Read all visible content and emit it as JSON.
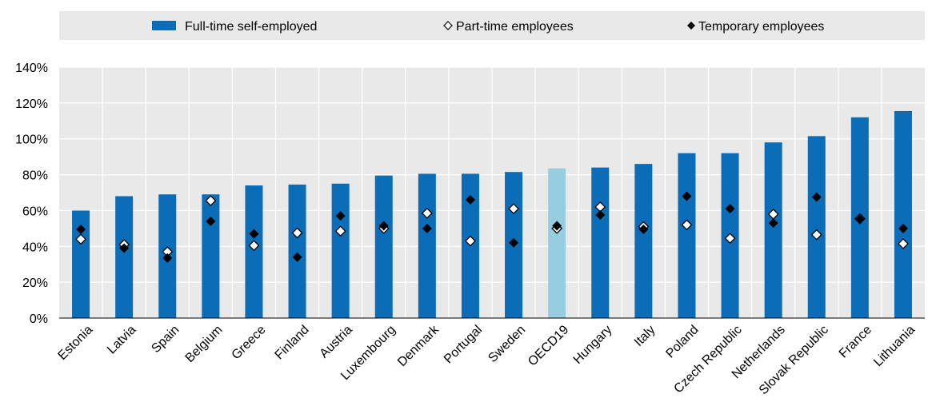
{
  "chart_data": {
    "type": "bar",
    "categories": [
      "Estonia",
      "Latvia",
      "Spain",
      "Belgium",
      "Greece",
      "Finland",
      "Austria",
      "Luxembourg",
      "Denmark",
      "Portugal",
      "Sweden",
      "OECD19",
      "Hungary",
      "Italy",
      "Poland",
      "Czech Republic",
      "Netherlands",
      "Slovak Republic",
      "France",
      "Lithuania"
    ],
    "highlight_category": "OECD19",
    "series": [
      {
        "name": "Full-time self-employed",
        "marker": "bar",
        "color": "#0b6db8",
        "values": [
          60,
          68,
          69,
          69,
          74,
          74.5,
          75,
          79.5,
          80.5,
          80.5,
          81.5,
          83.5,
          84,
          86,
          92,
          92,
          98,
          101.5,
          112,
          115.5
        ]
      },
      {
        "name": "Part-time employees",
        "marker": "hollow-diamond",
        "values": [
          44,
          41,
          37,
          65.5,
          40.5,
          47.5,
          48.5,
          50,
          58.5,
          43,
          61,
          50,
          62,
          51,
          52,
          44.5,
          58,
          46.5,
          55.5,
          41.5
        ]
      },
      {
        "name": "Temporary employees",
        "marker": "filled-diamond",
        "values": [
          49.5,
          39,
          33.5,
          54,
          47,
          34,
          57,
          51.5,
          50,
          66,
          42,
          51.5,
          57.5,
          49.5,
          68,
          61,
          53,
          67.5,
          55,
          50
        ]
      }
    ],
    "highlight_color": "#96cde0",
    "ylim": [
      0,
      140
    ],
    "yticks": [
      "0%",
      "20%",
      "40%",
      "60%",
      "80%",
      "100%",
      "120%",
      "140%"
    ],
    "ytick_values": [
      0,
      20,
      40,
      60,
      80,
      100,
      120,
      140
    ],
    "legend_placement": "top",
    "grid": "vertical-and-horizontal"
  }
}
